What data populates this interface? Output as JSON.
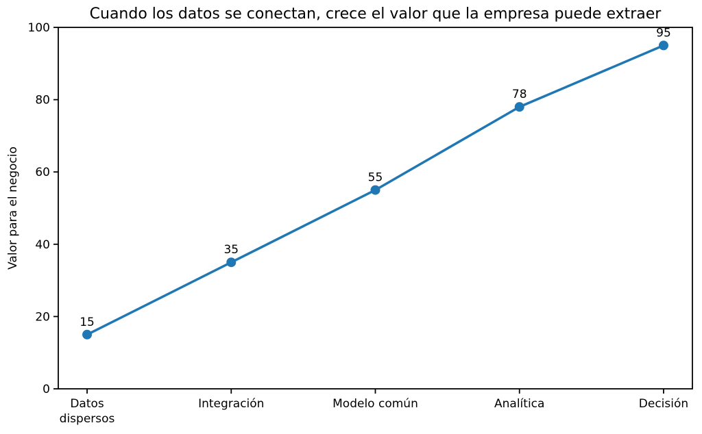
{
  "chart_data": {
    "type": "line",
    "title": "Cuando los datos se conectan, crece el valor que la empresa puede extraer",
    "xlabel": "",
    "ylabel": "Valor para el negocio",
    "categories": [
      "Datos\ndispersos",
      "Integración",
      "Modelo común",
      "Analítica",
      "Decisión"
    ],
    "series": [
      {
        "name": "Valor para el negocio",
        "values": [
          15,
          35,
          55,
          78,
          95
        ],
        "point_labels": [
          "15",
          "35",
          "55",
          "78",
          "95"
        ]
      }
    ],
    "ylim": [
      0,
      100
    ],
    "yticks": [
      0,
      20,
      40,
      60,
      80,
      100
    ],
    "grid": false,
    "legend": null,
    "line_color": "#1f77b4",
    "marker": "circle",
    "background_color": "#ffffff",
    "text_color": "#000000",
    "spine_color": "#000000"
  }
}
